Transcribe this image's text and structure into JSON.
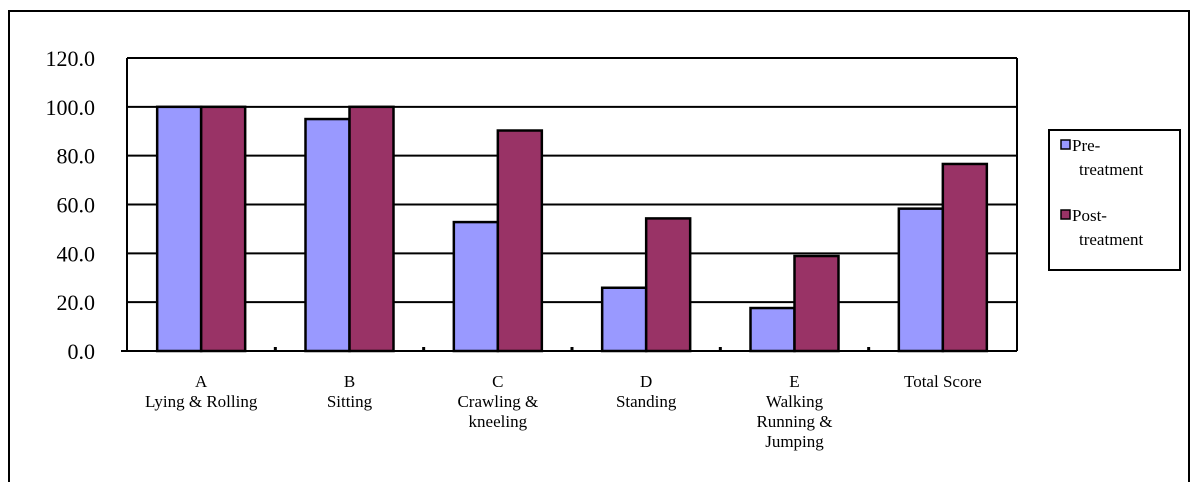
{
  "chart_data": {
    "type": "bar",
    "title": "",
    "xlabel": "",
    "ylabel": "",
    "ylim": [
      0,
      120
    ],
    "yticks": [
      "0.0",
      "20.0",
      "40.0",
      "60.0",
      "80.0",
      "100.0",
      "120.0"
    ],
    "grid": true,
    "legend_position": "right",
    "categories": [
      [
        "A",
        "Lying & Rolling"
      ],
      [
        "B",
        "Sitting"
      ],
      [
        "C",
        "Crawling &",
        "kneeling"
      ],
      [
        "D",
        "Standing"
      ],
      [
        "E",
        "Walking",
        "Running &",
        "Jumping"
      ],
      [
        "Total Score"
      ]
    ],
    "series": [
      {
        "name": [
          "Pre-",
          "treatment"
        ],
        "color": "#9999ff",
        "values": [
          100.0,
          95.0,
          52.8,
          25.9,
          17.6,
          58.3
        ]
      },
      {
        "name": [
          "Post-",
          "treatment"
        ],
        "color": "#993366",
        "values": [
          100.0,
          100.0,
          90.3,
          54.3,
          38.9,
          76.6
        ]
      }
    ]
  }
}
